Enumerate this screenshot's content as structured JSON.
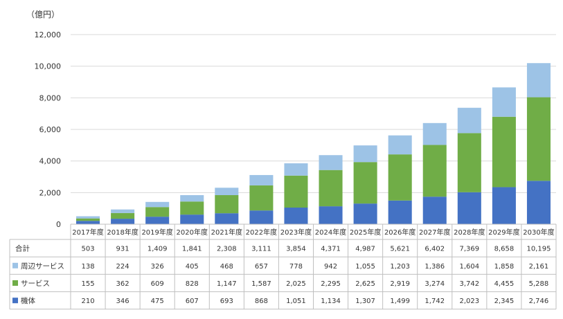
{
  "chart_data": {
    "type": "bar",
    "stacked": true,
    "ylabel": "（億円）",
    "ylim": [
      0,
      12000
    ],
    "yticks": [
      "0",
      "2,000",
      "4,000",
      "6,000",
      "8,000",
      "10,000",
      "12,000"
    ],
    "ytick_values": [
      0,
      2000,
      4000,
      6000,
      8000,
      10000,
      12000
    ],
    "categories": [
      "2017年度",
      "2018年度",
      "2019年度",
      "2020年度",
      "2021年度",
      "2022年度",
      "2023年度",
      "2024年度",
      "2025年度",
      "2026年度",
      "2027年度",
      "2028年度",
      "2029年度",
      "2030年度"
    ],
    "series": [
      {
        "name": "機体",
        "color": "#4472c4",
        "values": [
          210,
          346,
          475,
          607,
          693,
          868,
          1051,
          1134,
          1307,
          1499,
          1742,
          2023,
          2345,
          2746
        ],
        "labels": [
          "210",
          "346",
          "475",
          "607",
          "693",
          "868",
          "1,051",
          "1,134",
          "1,307",
          "1,499",
          "1,742",
          "2,023",
          "2,345",
          "2,746"
        ]
      },
      {
        "name": "サービス",
        "color": "#70ad47",
        "values": [
          155,
          362,
          609,
          828,
          1147,
          1587,
          2025,
          2295,
          2625,
          2919,
          3274,
          3742,
          4455,
          5288
        ],
        "labels": [
          "155",
          "362",
          "609",
          "828",
          "1,147",
          "1,587",
          "2,025",
          "2,295",
          "2,625",
          "2,919",
          "3,274",
          "3,742",
          "4,455",
          "5,288"
        ]
      },
      {
        "name": "周辺サービス",
        "color": "#9dc3e6",
        "values": [
          138,
          224,
          326,
          405,
          468,
          657,
          778,
          942,
          1055,
          1203,
          1386,
          1604,
          1858,
          2161
        ],
        "labels": [
          "138",
          "224",
          "326",
          "405",
          "468",
          "657",
          "778",
          "942",
          "1,055",
          "1,203",
          "1,386",
          "1,604",
          "1,858",
          "2,161"
        ]
      }
    ],
    "total": {
      "name": "合計",
      "values": [
        503,
        931,
        1409,
        1841,
        2308,
        3111,
        3854,
        4371,
        4987,
        5621,
        6402,
        7369,
        8658,
        10195
      ],
      "labels": [
        "503",
        "931",
        "1,409",
        "1,841",
        "2,308",
        "3,111",
        "3,854",
        "4,371",
        "4,987",
        "5,621",
        "6,402",
        "7,369",
        "8,658",
        "10,195"
      ]
    },
    "table_row_order": [
      "合計",
      "周辺サービス",
      "サービス",
      "機体"
    ],
    "grid": true
  }
}
